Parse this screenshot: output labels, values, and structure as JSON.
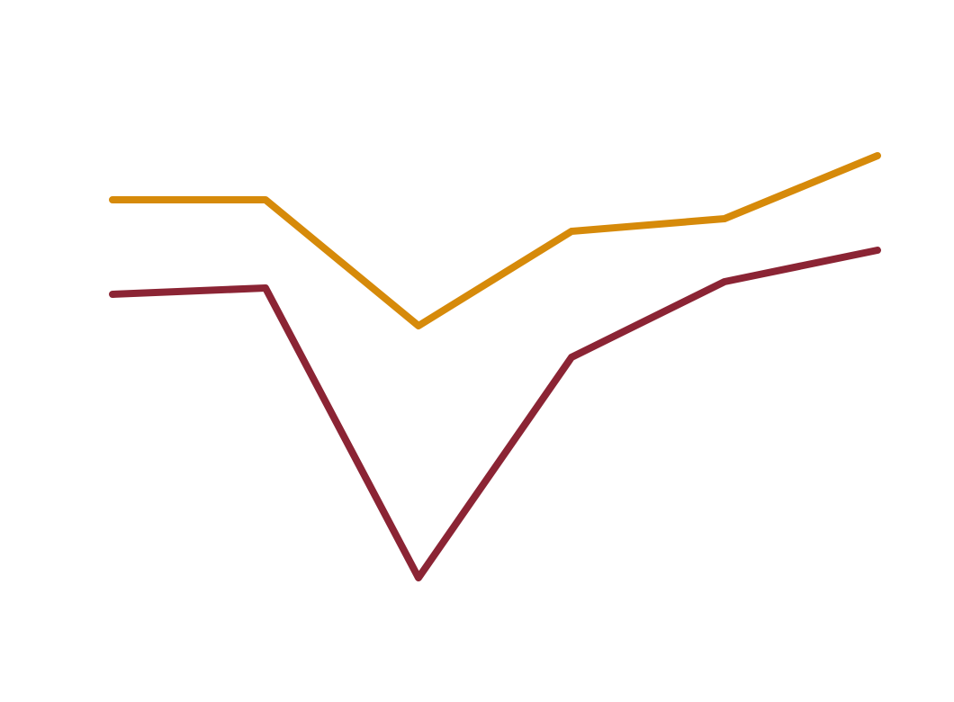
{
  "chart_data": {
    "type": "line",
    "categories": [
      null,
      null,
      null,
      null,
      null,
      null
    ],
    "series": [
      {
        "color": "#d68a0a",
        "values": [
          74,
          74,
          54,
          69,
          71,
          81
        ]
      },
      {
        "color": "#8b2434",
        "values": [
          59,
          60,
          14,
          49,
          61,
          66
        ]
      }
    ],
    "ylim": [
      0,
      100
    ]
  }
}
